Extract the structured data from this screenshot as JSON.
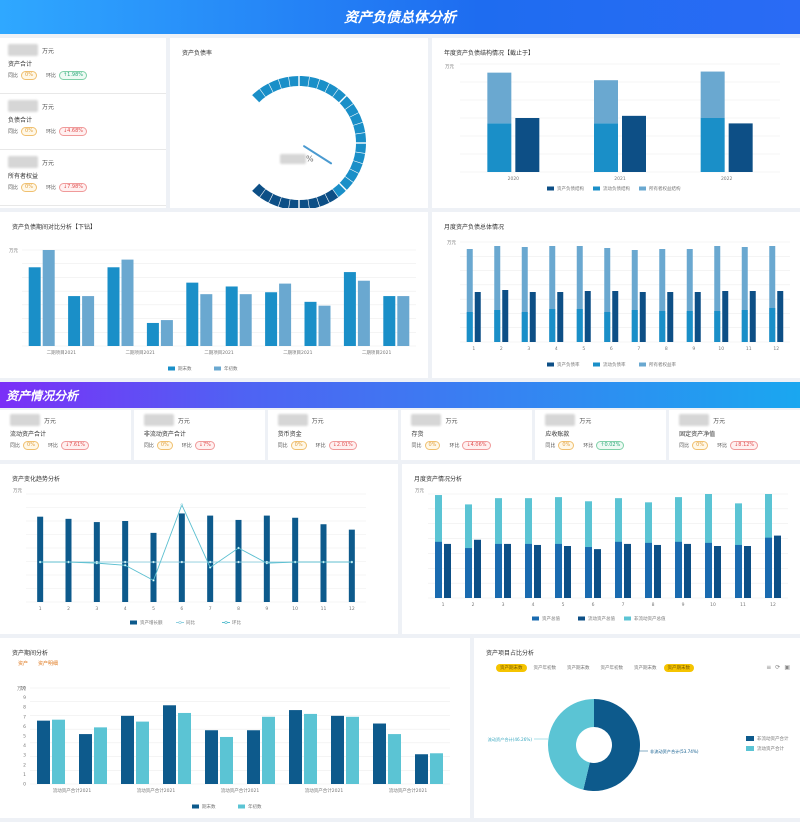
{
  "section1": {
    "title": "资产负债总体分析"
  },
  "section2": {
    "title": "资产情况分析"
  },
  "kpi_left": [
    {
      "unit": "万元",
      "name": "资产合计",
      "tongbi": "同比",
      "tongbi_tag": "0%",
      "huanbi": "环比",
      "huanbi_tag": "↑1.98%",
      "huanbi_color": "g"
    },
    {
      "unit": "万元",
      "name": "负债合计",
      "tongbi": "同比",
      "tongbi_tag": "0%",
      "huanbi": "环比",
      "huanbi_tag": "↓4.68%",
      "huanbi_color": "r"
    },
    {
      "unit": "万元",
      "name": "所有者权益",
      "tongbi": "同比",
      "tongbi_tag": "0%",
      "huanbi": "环比",
      "huanbi_tag": "↓7.98%",
      "huanbi_color": "r"
    }
  ],
  "gauge": {
    "title": "资产负债率",
    "value_suffix": "%",
    "value": 0.62
  },
  "chart_year": {
    "title": "年度资产负债结构情况【截止于】",
    "type": "bar",
    "ylabel": "万元",
    "categories": [
      "2020",
      "2021",
      "2022"
    ],
    "stack_bottom": [
      0.45,
      0.45,
      0.5
    ],
    "stack_top": [
      0.47,
      0.4,
      0.43
    ],
    "single": [
      0.5,
      0.52,
      0.45
    ],
    "legend": [
      "资产负债结构",
      "流动负债结构",
      "所有者权益结构"
    ],
    "colors": [
      "#0d4f86",
      "#1a8fc8",
      "#6aa8d0"
    ]
  },
  "chart_compare": {
    "title": "资产负债期间对比分析【下钻】",
    "type": "bar",
    "ylabel": "万元",
    "categories": [
      "1",
      "2",
      "3",
      "4",
      "5",
      "6",
      "7",
      "8",
      "9",
      "10"
    ],
    "x_labels": [
      "二期项目2021",
      "",
      "二期项目2021",
      "",
      "二期项目2021",
      "",
      "二期项目2021",
      "",
      "二期项目2021",
      ""
    ],
    "series": [
      {
        "name": "期末数",
        "values": [
          0.82,
          0.52,
          0.82,
          0.24,
          0.66,
          0.62,
          0.56,
          0.46,
          0.77,
          0.52
        ],
        "color": "#1a8fc8"
      },
      {
        "name": "年初数",
        "values": [
          1.0,
          0.52,
          0.9,
          0.27,
          0.54,
          0.54,
          0.65,
          0.42,
          0.68,
          0.52
        ],
        "color": "#6aa8d0"
      }
    ]
  },
  "chart_month": {
    "title": "月度资产负债总体情况",
    "type": "bar",
    "ylabel": "万元",
    "categories": [
      "1",
      "2",
      "3",
      "4",
      "5",
      "6",
      "7",
      "8",
      "9",
      "10",
      "11",
      "12"
    ],
    "series": [
      {
        "name": "资产负债率",
        "values": [
          0.5,
          0.52,
          0.5,
          0.5,
          0.51,
          0.51,
          0.5,
          0.5,
          0.5,
          0.51,
          0.51,
          0.51
        ],
        "color": "#0d4f86"
      },
      {
        "name": "流动负债率",
        "values": [
          0.3,
          0.32,
          0.3,
          0.33,
          0.33,
          0.3,
          0.32,
          0.31,
          0.31,
          0.31,
          0.32,
          0.34
        ],
        "color": "#1a8fc8"
      },
      {
        "name": "所有者权益率",
        "values": [
          0.93,
          0.96,
          0.95,
          0.96,
          0.96,
          0.94,
          0.92,
          0.93,
          0.93,
          0.96,
          0.95,
          0.96
        ],
        "color": "#6aa8d0"
      }
    ]
  },
  "kpi_row2": [
    {
      "unit": "万元",
      "name": "流动资产合计",
      "tongbi": "同比",
      "tongbi_tag": "0%",
      "huanbi": "环比",
      "huanbi_tag": "↓7.61%",
      "huanbi_color": "r"
    },
    {
      "unit": "万元",
      "name": "非流动资产合计",
      "tongbi": "同比",
      "tongbi_tag": "0%",
      "huanbi": "环比",
      "huanbi_tag": "↓7%",
      "huanbi_color": "r"
    },
    {
      "unit": "万元",
      "name": "货币资金",
      "tongbi": "同比",
      "tongbi_tag": "0%",
      "huanbi": "环比",
      "huanbi_tag": "↓2.01%",
      "huanbi_color": "r"
    },
    {
      "unit": "万元",
      "name": "存货",
      "tongbi": "同比",
      "tongbi_tag": "0%",
      "huanbi": "环比",
      "huanbi_tag": "↓4.06%",
      "huanbi_color": "r"
    },
    {
      "unit": "万元",
      "name": "应收账款",
      "tongbi": "同比",
      "tongbi_tag": "0%",
      "huanbi": "环比",
      "huanbi_tag": "↑0.02%",
      "huanbi_color": "g"
    },
    {
      "unit": "万元",
      "name": "固定资产净值",
      "tongbi": "同比",
      "tongbi_tag": "0%",
      "huanbi": "环比",
      "huanbi_tag": "↓8.12%",
      "huanbi_color": "r"
    }
  ],
  "chart_asset_trend": {
    "title": "资产变化趋势分析",
    "type": "bar",
    "ylabel": "万元",
    "categories": [
      "1",
      "2",
      "3",
      "4",
      "5",
      "6",
      "7",
      "8",
      "9",
      "10",
      "11",
      "12"
    ],
    "bars": [
      0.79,
      0.77,
      0.74,
      0.75,
      0.64,
      0.82,
      0.8,
      0.76,
      0.8,
      0.78,
      0.72,
      0.67
    ],
    "line_tongbi": [
      0.37,
      0.37,
      0.37,
      0.37,
      0.37,
      0.37,
      0.37,
      0.37,
      0.37,
      0.37,
      0.37,
      0.37
    ],
    "line_huanbi": [
      0.37,
      0.37,
      0.36,
      0.34,
      0.2,
      0.9,
      0.32,
      0.5,
      0.36,
      0.37,
      0.37,
      0.37
    ],
    "legend": [
      "资产增长额",
      "同比",
      "环比"
    ],
    "colors": [
      "#0d5a8c",
      "#8fd0e0",
      "#5bbfd0"
    ]
  },
  "chart_asset_month": {
    "title": "月度资产情况分析",
    "type": "bar",
    "ylabel": "万元",
    "categories": [
      "1",
      "2",
      "3",
      "4",
      "5",
      "6",
      "7",
      "8",
      "9",
      "10",
      "11",
      "12"
    ],
    "series": [
      {
        "name": "资产总值",
        "values": [
          0.54,
          0.48,
          0.52,
          0.52,
          0.52,
          0.49,
          0.54,
          0.53,
          0.54,
          0.53,
          0.51,
          0.58
        ],
        "color": "#1a6bb0"
      },
      {
        "name": "流动资产总值",
        "values": [
          0.52,
          0.56,
          0.52,
          0.51,
          0.5,
          0.47,
          0.52,
          0.51,
          0.52,
          0.5,
          0.5,
          0.6
        ],
        "color": "#0d4f86"
      },
      {
        "name": "非流动资产总值",
        "values": [
          0.99,
          0.9,
          0.96,
          0.96,
          0.97,
          0.93,
          0.96,
          0.92,
          0.97,
          1.0,
          0.91,
          1.0
        ],
        "color": "#5bc4d4"
      }
    ]
  },
  "chart_asset_struct": {
    "title": "资产期间分析",
    "tabs": [
      "资产",
      "资产明细"
    ],
    "type": "bar",
    "ylabel": "万元",
    "y_ticks": [
      "10",
      "9",
      "8",
      "7",
      "6",
      "5",
      "4",
      "3",
      "2",
      "1",
      "0"
    ],
    "categories": [
      "1",
      "2",
      "3",
      "4",
      "5",
      "6",
      "7",
      "8",
      "9",
      "10"
    ],
    "x_labels": [
      "流动资产合计2021",
      "",
      "流动资产合计2021",
      "",
      "流动资产合计2021",
      "",
      "流动资产合计2021",
      "",
      "流动资产合计2021",
      ""
    ],
    "series": [
      {
        "name": "期末数",
        "values": [
          6.6,
          5.2,
          7.1,
          8.2,
          5.6,
          5.6,
          7.7,
          7.1,
          6.3,
          3.1
        ],
        "color": "#0d5a8c"
      },
      {
        "name": "年初数",
        "values": [
          6.7,
          5.9,
          6.5,
          7.4,
          4.9,
          7.0,
          7.3,
          7.0,
          5.2,
          3.2
        ],
        "color": "#5bc4d4"
      }
    ]
  },
  "chart_pie": {
    "title": "资产项目占比分析",
    "type": "pie",
    "chips": [
      "资产期末数",
      "资产年初数",
      "资产期末数",
      "资产年初数",
      "资产期末数",
      "资产期末数"
    ],
    "chips_on": [
      0,
      5
    ],
    "labels": [
      "流动资产合计(46.26%)",
      "非流动资产合计(53.74%)"
    ],
    "values": [
      46.26,
      53.74
    ],
    "legend": [
      "流动资产合计",
      "非流动资产合计"
    ],
    "colors": [
      "#5bc4d4",
      "#0d5a8c"
    ]
  }
}
